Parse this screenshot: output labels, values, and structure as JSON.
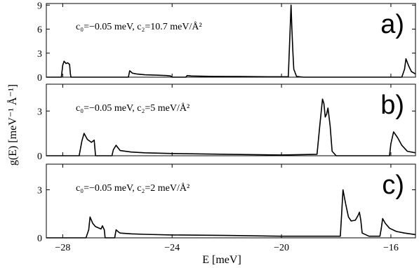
{
  "chart_data": {
    "type": "line",
    "xlabel": "E [meV]",
    "ylabel": "g(E) [meV⁻¹ Å⁻¹]",
    "x_ticks": [
      "−28",
      "−24",
      "−20",
      "−16"
    ],
    "xlim": [
      -28.6,
      -15.1
    ],
    "panels": [
      {
        "letter": "a)",
        "annotation": "c₀=−0.05 meV, c₂=10.7 meV/Å²",
        "ylim": [
          0,
          9.2
        ],
        "y_ticks": [
          "0",
          "3",
          "6",
          "9"
        ],
        "x": [
          -28.6,
          -28.05,
          -28.0,
          -27.95,
          -27.88,
          -27.82,
          -27.75,
          -27.72,
          -27.7,
          -26.5,
          -25.6,
          -25.55,
          -25.45,
          -25.3,
          -25.0,
          -24.6,
          -24.2,
          -24.05,
          -24.0,
          -23.5,
          -23.45,
          -23.3,
          -22.5,
          -21.5,
          -20.5,
          -19.75,
          -19.65,
          -19.62,
          -19.58,
          -19.55,
          -19.45,
          -19.2,
          -18.0,
          -17.0,
          -16.0,
          -15.6,
          -15.5,
          -15.45,
          -15.35,
          -15.25,
          -15.1
        ],
        "y": [
          0,
          0,
          1.5,
          2.0,
          1.7,
          1.8,
          1.6,
          0.4,
          0,
          0,
          0,
          0.8,
          0.5,
          0.4,
          0.3,
          0.25,
          0.2,
          0.15,
          0,
          0,
          0.2,
          0.15,
          0.1,
          0.08,
          0.05,
          0.05,
          9.0,
          6.0,
          3.0,
          1.0,
          0.1,
          0,
          0,
          0,
          0,
          0,
          1.0,
          2.3,
          1.4,
          0.7,
          0.4
        ]
      },
      {
        "letter": "b)",
        "annotation": "c₀=−0.05 meV, c₂=5 meV/Å²",
        "ylim": [
          0,
          4.8
        ],
        "y_ticks": [
          "0",
          "3"
        ],
        "x": [
          -28.6,
          -27.4,
          -27.3,
          -27.22,
          -27.1,
          -26.95,
          -26.85,
          -26.82,
          -26.8,
          -26.2,
          -26.15,
          -26.05,
          -25.9,
          -25.5,
          -25.0,
          -24.0,
          -22.0,
          -20.0,
          -18.7,
          -18.6,
          -18.5,
          -18.45,
          -18.4,
          -18.35,
          -18.3,
          -18.22,
          -18.15,
          -18.0,
          -17.0,
          -16.05,
          -16.0,
          -15.9,
          -15.75,
          -15.6,
          -15.4,
          -15.1
        ],
        "y": [
          0,
          0,
          1.0,
          1.5,
          1.1,
          0.9,
          1.05,
          0.4,
          0,
          0,
          0.4,
          0.7,
          0.35,
          0.25,
          0.2,
          0.15,
          0.1,
          0.05,
          0.1,
          2.0,
          3.8,
          3.5,
          2.6,
          2.8,
          3.2,
          2.0,
          0.3,
          0,
          0,
          0,
          0.8,
          1.6,
          1.2,
          0.7,
          0.3,
          0.2
        ]
      },
      {
        "letter": "c)",
        "annotation": "c₀=−0.05 meV, c₂=2 meV/Å²",
        "ylim": [
          0,
          4.6
        ],
        "y_ticks": [
          "0",
          "3"
        ],
        "x": [
          -28.6,
          -27.15,
          -27.05,
          -27.0,
          -26.9,
          -26.8,
          -26.6,
          -26.55,
          -26.48,
          -26.45,
          -26.1,
          -26.05,
          -25.95,
          -25.9,
          -25.5,
          -25.0,
          -24.0,
          -22.0,
          -20.0,
          -18.5,
          -17.85,
          -17.8,
          -17.75,
          -17.65,
          -17.55,
          -17.45,
          -17.3,
          -17.2,
          -17.15,
          -17.1,
          -17.05,
          -16.8,
          -16.6,
          -16.4,
          -16.35,
          -16.3,
          -16.2,
          -16.05,
          -15.8,
          -15.5,
          -15.1
        ],
        "y": [
          0,
          0,
          0.5,
          1.3,
          0.9,
          0.7,
          0.55,
          0.75,
          0.5,
          0,
          0,
          0.5,
          0.35,
          0.3,
          0.25,
          0.22,
          0.18,
          0.15,
          0.1,
          0.1,
          0.1,
          1.5,
          3.0,
          2.1,
          1.3,
          1.05,
          1.1,
          1.4,
          1.6,
          1.1,
          0.3,
          0.1,
          0.1,
          0.1,
          0.6,
          1.2,
          0.9,
          0.6,
          0.4,
          0.3,
          0.2
        ]
      }
    ]
  }
}
